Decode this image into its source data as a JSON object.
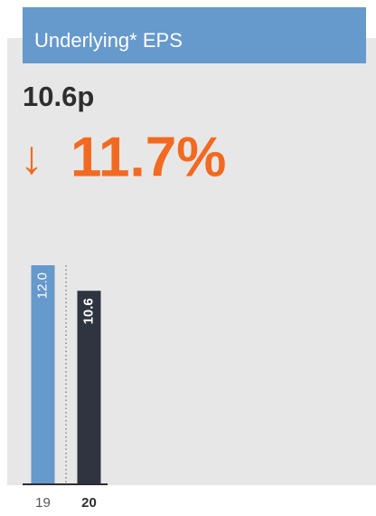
{
  "chart_data": {
    "type": "bar",
    "title": "Underlying* EPS",
    "headline": "10.6p",
    "change_arrow": "↓",
    "change": "11.7%",
    "categories": [
      "19",
      "20"
    ],
    "values": [
      12.0,
      10.6
    ],
    "value_labels": [
      "12.0",
      "10.6"
    ],
    "colors": [
      "#6699cc",
      "#2e3440"
    ],
    "ylim": [
      0,
      12
    ]
  }
}
